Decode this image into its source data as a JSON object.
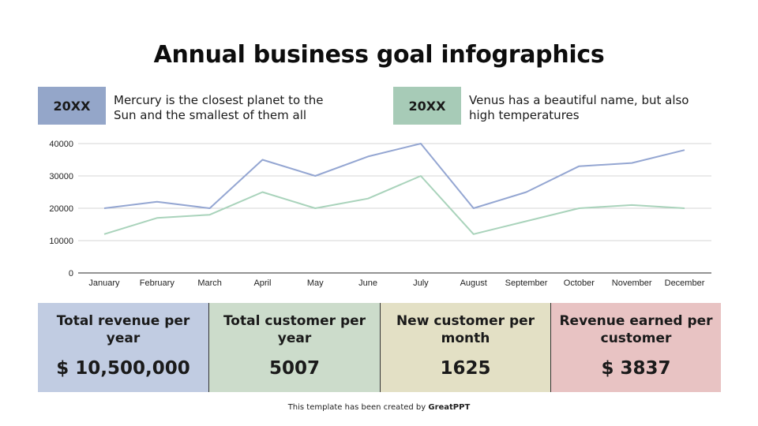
{
  "title": "Annual business goal infographics",
  "legend": [
    {
      "label": "20XX",
      "description": "Mercury is the closest planet to the Sun and the smallest of them all",
      "color": "#94a6c9"
    },
    {
      "label": "20XX",
      "description": "Venus has a beautiful name, but also high temperatures",
      "color": "#a7cbb7"
    }
  ],
  "legend_desc": {
    "line0_a": "Mercury is the closest planet to the",
    "line0_b": "Sun and the smallest of them all",
    "line1_a": "Venus has a beautiful name, but also",
    "line1_b": "high temperatures"
  },
  "chart_data": {
    "type": "line",
    "title": "",
    "xlabel": "",
    "ylabel": "",
    "categories": [
      "January",
      "February",
      "March",
      "April",
      "May",
      "June",
      "July",
      "August",
      "September",
      "October",
      "November",
      "December"
    ],
    "series": [
      {
        "name": "20XX (Mercury)",
        "color": "#94a6d2",
        "values": [
          20000,
          22000,
          20000,
          35000,
          30000,
          36000,
          40000,
          20000,
          25000,
          33000,
          34000,
          38000
        ]
      },
      {
        "name": "20XX (Venus)",
        "color": "#a9d3bb",
        "values": [
          12000,
          17000,
          18000,
          25000,
          20000,
          23000,
          30000,
          12000,
          16000,
          20000,
          21000,
          20000
        ]
      }
    ],
    "yticks": [
      0,
      10000,
      20000,
      30000,
      40000
    ],
    "ylim": [
      0,
      40000
    ],
    "grid": true,
    "legend_position": "top (custom boxes)"
  },
  "stats": [
    {
      "label": "Total revenue per year",
      "value": "$ 10,500,000",
      "color": "#c1cce2"
    },
    {
      "label": "Total customer per year",
      "value": "5007",
      "color": "#ccdccb"
    },
    {
      "label": "New customer per month",
      "value": "1625",
      "color": "#e3e0c5"
    },
    {
      "label": "Revenue earned per customer",
      "value": "$ 3837",
      "color": "#e8c3c3"
    }
  ],
  "stat_lines": {
    "s0a": "Total revenue per",
    "s0b": "year",
    "s1a": "Total customer per",
    "s1b": "year",
    "s2a": "New customer per",
    "s2b": "month",
    "s3a": "Revenue earned per",
    "s3b": "customer"
  },
  "footer": {
    "prefix": "This template has been created by ",
    "brand": "GreatPPT"
  }
}
